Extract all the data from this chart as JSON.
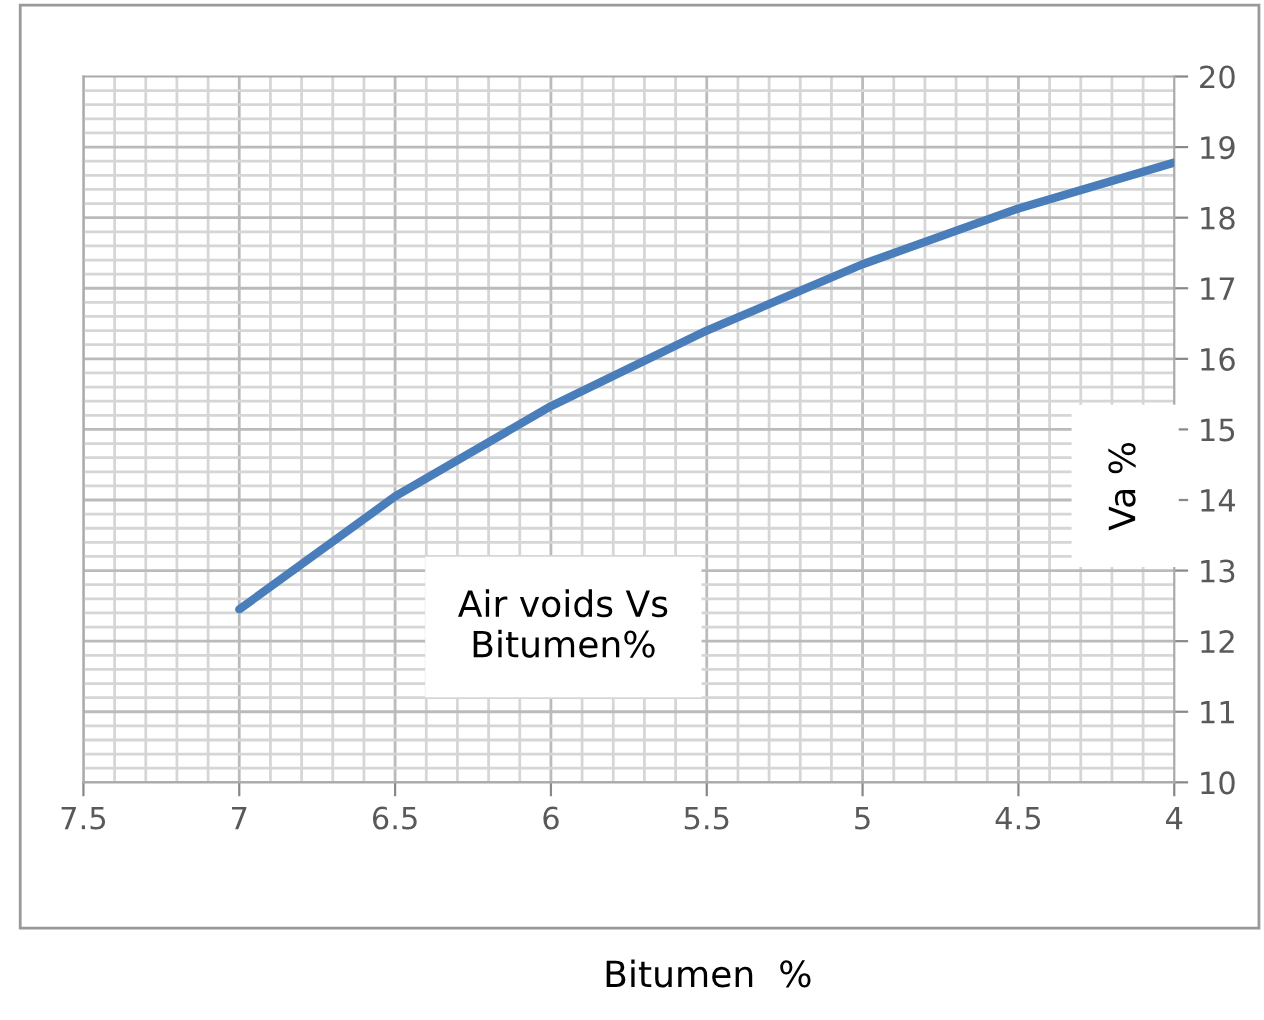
{
  "chart_data": {
    "type": "line",
    "title": "Air voids Vs\nBitumen%",
    "xlabel": "Bitumen  %",
    "ylabel": "Va %",
    "x": [
      7,
      6.5,
      6,
      5.5,
      5,
      4.5,
      4
    ],
    "series": [
      {
        "color": "#4a7ebb",
        "values": [
          12.45,
          14.05,
          15.33,
          16.4,
          17.34,
          18.13,
          18.78
        ]
      }
    ],
    "xlim": [
      7.5,
      4
    ],
    "xticks": [
      7.5,
      7,
      6.5,
      6,
      5.5,
      5,
      4.5,
      4
    ],
    "ylim": [
      10,
      20
    ],
    "yticks": [
      10,
      11,
      12,
      13,
      14,
      15,
      16,
      17,
      18,
      19,
      20
    ],
    "grid": true,
    "marker": "none",
    "line_style": "solid"
  }
}
